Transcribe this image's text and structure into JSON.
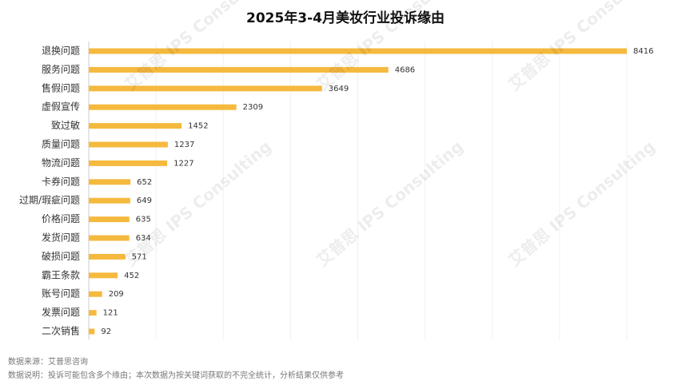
{
  "chart_data": {
    "type": "bar",
    "orientation": "horizontal",
    "title": "2025年3-4月美妆行业投诉缘由",
    "categories": [
      "退换问题",
      "服务问题",
      "售假问题",
      "虚假宣传",
      "致过敏",
      "质量问题",
      "物流问题",
      "卡券问题",
      "过期/瑕疵问题",
      "价格问题",
      "发货问题",
      "破损问题",
      "霸王条款",
      "账号问题",
      "发票问题",
      "二次销售"
    ],
    "values": [
      8416,
      4686,
      3649,
      2309,
      1452,
      1237,
      1227,
      652,
      649,
      635,
      634,
      571,
      452,
      209,
      121,
      92
    ],
    "color": "#f5b93e",
    "source": "数据来源：艾普思咨询",
    "note": "数据说明：投诉可能包含多个缘由；本次数据为按关键词获取的不完全统计，分析结果仅供参考",
    "watermark": "艾普思 IPS Consulting"
  }
}
